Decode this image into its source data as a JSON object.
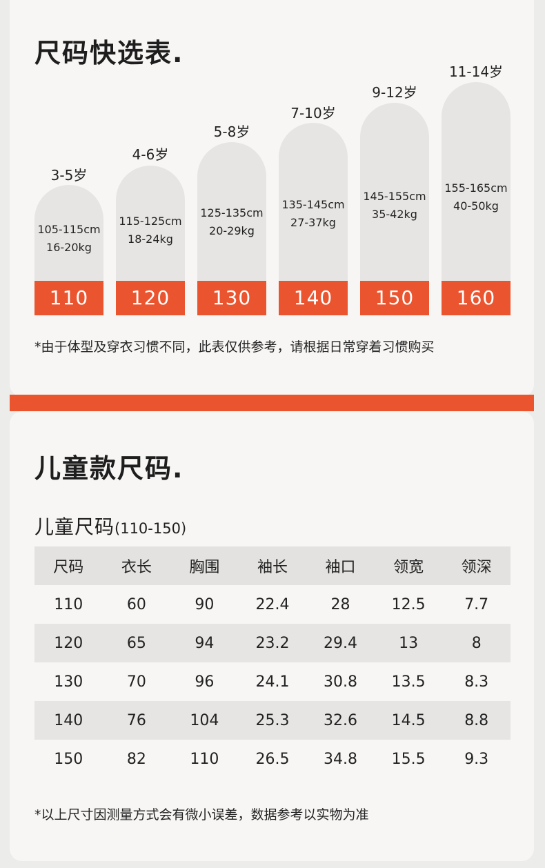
{
  "quick_table": {
    "title": "尺码快选表.",
    "columns": [
      {
        "age": "3-5岁",
        "height": "105-115cm",
        "weight": "16-20kg",
        "size": "110"
      },
      {
        "age": "4-6岁",
        "height": "115-125cm",
        "weight": "18-24kg",
        "size": "120"
      },
      {
        "age": "5-8岁",
        "height": "125-135cm",
        "weight": "20-29kg",
        "size": "130"
      },
      {
        "age": "7-10岁",
        "height": "135-145cm",
        "weight": "27-37kg",
        "size": "140"
      },
      {
        "age": "9-12岁",
        "height": "145-155cm",
        "weight": "35-42kg",
        "size": "150"
      },
      {
        "age": "11-14岁",
        "height": "155-165cm",
        "weight": "40-50kg",
        "size": "160"
      }
    ],
    "note": "*由于体型及穿衣习惯不同，此表仅供参考，请根据日常穿着习惯购买"
  },
  "kids_table": {
    "title": "儿童款尺码.",
    "subtitle": "儿童尺码",
    "subtitle_range": "(110-150)",
    "headers": [
      "尺码",
      "衣长",
      "胸围",
      "袖长",
      "袖口",
      "领宽",
      "领深"
    ],
    "rows": [
      [
        "110",
        "60",
        "90",
        "22.4",
        "28",
        "12.5",
        "7.7"
      ],
      [
        "120",
        "65",
        "94",
        "23.2",
        "29.4",
        "13",
        "8"
      ],
      [
        "130",
        "70",
        "96",
        "24.1",
        "30.8",
        "13.5",
        "8.3"
      ],
      [
        "140",
        "76",
        "104",
        "25.3",
        "32.6",
        "14.5",
        "8.8"
      ],
      [
        "150",
        "82",
        "110",
        "26.5",
        "34.8",
        "15.5",
        "9.3"
      ]
    ],
    "note": "*以上尺寸因测量方式会有微小误差，数据参考以实物为准"
  },
  "colors": {
    "accent": "#ea5530",
    "pill": "#e6e5e3",
    "background": "#f7f6f4"
  }
}
